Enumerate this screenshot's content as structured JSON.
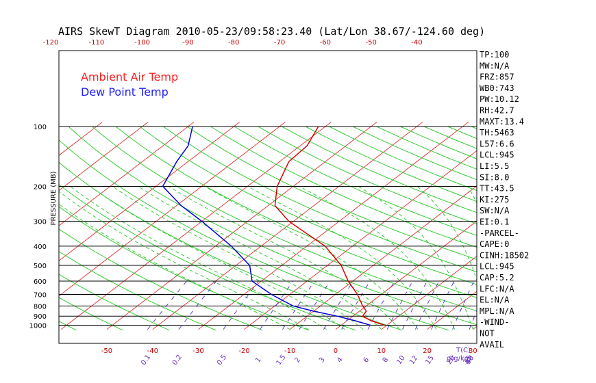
{
  "chart_data": {
    "type": "line",
    "title": "AIRS SkewT Diagram 2010-05-23/09:58:23.40 (Lat/Lon 38.67/-124.60 deg)",
    "ylabel": "PRESSURE (MB)",
    "xlabel": "T(C)",
    "mixing_ratio_unit": "g(g/kg)",
    "y_scale": "log",
    "ylim": [
      1050,
      100
    ],
    "xlim": [
      -50,
      40
    ],
    "pressure_ticks": [
      100,
      200,
      300,
      400,
      500,
      600,
      700,
      800,
      900,
      1000
    ],
    "bottom_temp_ticks": [
      -50,
      -40,
      -30,
      -20,
      -10,
      0,
      10,
      20,
      30
    ],
    "top_temp_ticks": [
      -120,
      -110,
      -100,
      -90,
      -80,
      -70,
      -60,
      -50,
      -40
    ],
    "mixing_ratio_ticks": [
      "0.1",
      "0.2",
      "0.5",
      "1",
      "1.5",
      "2",
      "3",
      "4",
      "6",
      "8",
      "10",
      "12",
      "15",
      "20",
      "25",
      "30",
      "40"
    ],
    "legend": [
      {
        "name": "Ambient Air Temp",
        "color": "#ff2020"
      },
      {
        "name": "Dew Point Temp",
        "color": "#2020ff"
      }
    ],
    "series": [
      {
        "name": "Ambient Air Temp",
        "color": "#dd0000",
        "points": [
          {
            "p": 1000,
            "t": 9.5
          },
          {
            "p": 950,
            "t": 5.3
          },
          {
            "p": 900,
            "t": 2.1
          },
          {
            "p": 850,
            "t": 1.5
          },
          {
            "p": 800,
            "t": -0.8
          },
          {
            "p": 700,
            "t": -5.2
          },
          {
            "p": 600,
            "t": -11.0
          },
          {
            "p": 500,
            "t": -17.0
          },
          {
            "p": 400,
            "t": -26.0
          },
          {
            "p": 300,
            "t": -41.0
          },
          {
            "p": 250,
            "t": -48.5
          },
          {
            "p": 200,
            "t": -53.5
          },
          {
            "p": 150,
            "t": -58.0
          },
          {
            "p": 125,
            "t": -58.5
          },
          {
            "p": 100,
            "t": -61.5
          }
        ]
      },
      {
        "name": "Dew Point Temp",
        "color": "#0000dd",
        "points": [
          {
            "p": 1000,
            "t": 6.4
          },
          {
            "p": 950,
            "t": 1.8
          },
          {
            "p": 900,
            "t": -3.5
          },
          {
            "p": 850,
            "t": -10.0
          },
          {
            "p": 800,
            "t": -16.0
          },
          {
            "p": 700,
            "t": -24.0
          },
          {
            "p": 600,
            "t": -32.0
          },
          {
            "p": 500,
            "t": -37.0
          },
          {
            "p": 400,
            "t": -46.5
          },
          {
            "p": 300,
            "t": -60.0
          },
          {
            "p": 250,
            "t": -69.0
          },
          {
            "p": 200,
            "t": -78.5
          },
          {
            "p": 150,
            "t": -82.5
          },
          {
            "p": 125,
            "t": -84.5
          },
          {
            "p": 100,
            "t": -89.0
          }
        ]
      }
    ],
    "indices": [
      "TP:100",
      "MW:N/A",
      "FRZ:857",
      "WB0:743",
      "PW:10.12",
      "RH:42.7",
      "MAXT:13.4",
      "TH:5463",
      "L57:6.6",
      "LCL:945",
      "LI:5.5",
      "SI:8.0",
      "TT:43.5",
      "KI:275",
      "SW:N/A",
      "EI:0.1",
      "-PARCEL-",
      "CAPE:0",
      "CINH:18502",
      "LCL:945",
      "CAP:5.2",
      "LFC:N/A",
      "EL:N/A",
      "MPL:N/A",
      "-WIND-",
      "NOT",
      "AVAIL"
    ],
    "grid": true
  }
}
